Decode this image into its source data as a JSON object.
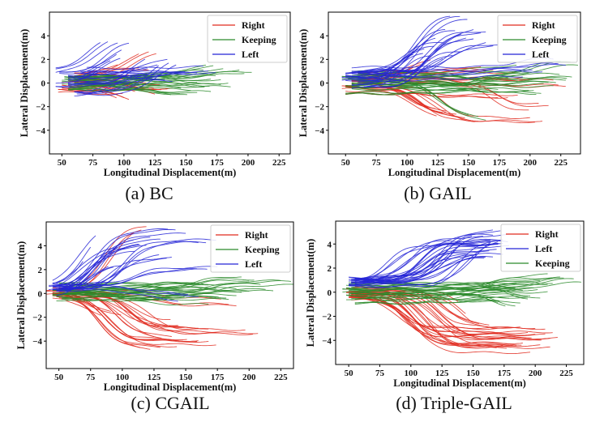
{
  "colors": {
    "Right": "#e02a1e",
    "Keeping": "#2a8a2a",
    "Left": "#2424d6"
  },
  "chart_data": [
    {
      "type": "line",
      "caption": "(a)  BC",
      "xlabel": "Longitudinal Displacement(m)",
      "ylabel": "Lateral Displacement(m)",
      "xlim": [
        40,
        234
      ],
      "ylim": [
        -6,
        6
      ],
      "xticks": [
        50,
        75,
        100,
        125,
        150,
        175,
        200,
        225
      ],
      "yticks": [
        -4,
        -2,
        0,
        2,
        4
      ],
      "legend": {
        "placement": "top-right",
        "order": [
          "Right",
          "Keeping",
          "Left"
        ]
      },
      "trajectory_format": "[x_start, x_end, y_start, y_end, x_transition]",
      "series": [
        {
          "name": "Right",
          "trajectories": [
            [
              47,
              100,
              -0.8,
              -1.0,
              80
            ],
            [
              50,
              105,
              -0.5,
              -1.7,
              95
            ],
            [
              55,
              125,
              0.2,
              -1.4,
              115
            ],
            [
              60,
              130,
              -0.3,
              -0.6,
              90
            ],
            [
              55,
              95,
              0.5,
              2.0,
              85
            ],
            [
              70,
              127,
              0.5,
              2.9,
              110
            ],
            [
              65,
              140,
              0.0,
              -0.5,
              100
            ],
            [
              60,
              120,
              0.8,
              1.2,
              90
            ],
            [
              50,
              95,
              -0.2,
              -1.7,
              85
            ],
            [
              58,
              110,
              0.3,
              0.8,
              95
            ]
          ]
        },
        {
          "name": "Keeping",
          "trajectories": [
            [
              52,
              180,
              0.3,
              1.2,
              150
            ],
            [
              55,
              203,
              0.5,
              1.0,
              170
            ],
            [
              56,
              187,
              -0.3,
              -0.3,
              120
            ],
            [
              60,
              175,
              0.2,
              0.6,
              140
            ],
            [
              55,
              160,
              -0.5,
              -0.9,
              130
            ],
            [
              60,
              185,
              -0.2,
              0.0,
              150
            ],
            [
              57,
              170,
              0.4,
              -0.2,
              130
            ],
            [
              62,
              155,
              0.0,
              -0.6,
              120
            ],
            [
              55,
              130,
              -0.4,
              0.3,
              100
            ],
            [
              60,
              145,
              0.6,
              0.8,
              110
            ],
            [
              50,
              120,
              0.0,
              -0.5,
              90
            ]
          ]
        },
        {
          "name": "Left",
          "trajectories": [
            [
              45,
              95,
              0.8,
              3.6,
              75
            ],
            [
              48,
              104,
              0.8,
              3.7,
              85
            ],
            [
              55,
              98,
              0.2,
              2.6,
              85
            ],
            [
              45,
              140,
              -0.3,
              0.2,
              90
            ],
            [
              65,
              135,
              0.9,
              2.3,
              120
            ],
            [
              62,
              143,
              -1.0,
              1.9,
              125
            ],
            [
              55,
              160,
              0.5,
              0.9,
              130
            ],
            [
              60,
              120,
              -0.8,
              1.0,
              100
            ],
            [
              70,
              175,
              0.9,
              0.8,
              130
            ],
            [
              55,
              118,
              0.0,
              2.5,
              105
            ]
          ]
        }
      ]
    },
    {
      "type": "line",
      "caption": "(b)  GAIL",
      "xlabel": "Longitudinal Displacement(m)",
      "ylabel": "Lateral Displacement(m)",
      "xlim": [
        36,
        241
      ],
      "ylim": [
        -6,
        6
      ],
      "xticks": [
        50,
        75,
        100,
        125,
        150,
        175,
        200,
        225
      ],
      "yticks": [
        -4,
        -2,
        0,
        2,
        4
      ],
      "legend": {
        "placement": "top-right",
        "order": [
          "Right",
          "Keeping",
          "Left"
        ]
      },
      "trajectory_format": "[x_start, x_end, y_start, y_end, x_transition]",
      "series": [
        {
          "name": "Right",
          "trajectories": [
            [
              47,
              155,
              -0.5,
              -3.3,
              115
            ],
            [
              50,
              210,
              -0.3,
              -3.2,
              120
            ],
            [
              55,
              215,
              0.2,
              -2.0,
              170
            ],
            [
              60,
              200,
              0.5,
              0.3,
              120
            ],
            [
              50,
              190,
              -0.8,
              -1.0,
              120
            ],
            [
              55,
              130,
              0.0,
              -2.5,
              100
            ],
            [
              60,
              170,
              0.8,
              1.2,
              130
            ],
            [
              50,
              140,
              -0.4,
              -2.8,
              110
            ],
            [
              65,
              230,
              0.0,
              -0.3,
              150
            ],
            [
              55,
              120,
              0.3,
              2.0,
              95
            ]
          ]
        },
        {
          "name": "Keeping",
          "trajectories": [
            [
              47,
              240,
              0.3,
              1.5,
              200
            ],
            [
              50,
              235,
              -0.3,
              0.5,
              150
            ],
            [
              55,
              220,
              0.0,
              -0.3,
              150
            ],
            [
              55,
              200,
              0.6,
              0.9,
              150
            ],
            [
              50,
              175,
              -0.8,
              -0.5,
              120
            ],
            [
              60,
              165,
              0.0,
              -3.2,
              130
            ],
            [
              55,
              210,
              -0.5,
              -0.8,
              160
            ],
            [
              60,
              190,
              0.8,
              0.2,
              140
            ],
            [
              52,
              150,
              0.3,
              -0.2,
              110
            ],
            [
              55,
              230,
              0.0,
              0.3,
              180
            ]
          ]
        },
        {
          "name": "Left",
          "trajectories": [
            [
              47,
              150,
              0.2,
              5.4,
              110
            ],
            [
              50,
              165,
              0.5,
              4.4,
              115
            ],
            [
              55,
              140,
              0.8,
              4.5,
              105
            ],
            [
              60,
              155,
              0.0,
              3.8,
              115
            ],
            [
              50,
              130,
              0.9,
              3.5,
              95
            ],
            [
              55,
              120,
              -0.5,
              2.5,
              95
            ],
            [
              60,
              175,
              0.9,
              3.3,
              130
            ],
            [
              50,
              210,
              0.5,
              1.0,
              150
            ],
            [
              55,
              230,
              1.0,
              1.5,
              180
            ],
            [
              65,
              145,
              -0.3,
              2.8,
              110
            ]
          ]
        }
      ]
    },
    {
      "type": "line",
      "caption": "(c)  CGAIL",
      "xlabel": "Longitudinal Displacement(m)",
      "ylabel": "Lateral Displacement(m)",
      "xlim": [
        40,
        235
      ],
      "ylim": [
        -6.3,
        6
      ],
      "xticks": [
        50,
        75,
        100,
        125,
        150,
        175,
        200,
        225
      ],
      "yticks": [
        -4,
        -2,
        0,
        2,
        4
      ],
      "legend": {
        "placement": "top-right",
        "order": [
          "Right",
          "Keeping",
          "Left"
        ]
      },
      "trajectory_format": "[x_start, x_end, y_start, y_end, x_transition]",
      "series": [
        {
          "name": "Right",
          "trajectories": [
            [
              40,
              175,
              0.0,
              -4.3,
              90
            ],
            [
              45,
              208,
              -0.2,
              -3.3,
              110
            ],
            [
              45,
              160,
              0.0,
              -4.0,
              85
            ],
            [
              50,
              150,
              -0.3,
              -2.8,
              100
            ],
            [
              48,
              130,
              0.0,
              -4.5,
              80
            ],
            [
              50,
              175,
              0.2,
              -3.2,
              105
            ],
            [
              45,
              120,
              0.2,
              5.8,
              85
            ],
            [
              55,
              100,
              0.0,
              -2.0,
              75
            ],
            [
              50,
              190,
              0.0,
              -1.0,
              120
            ],
            [
              45,
              140,
              0.1,
              -3.6,
              95
            ]
          ]
        },
        {
          "name": "Keeping",
          "trajectories": [
            [
              45,
              240,
              0.0,
              0.7,
              180
            ],
            [
              50,
              205,
              0.3,
              1.2,
              150
            ],
            [
              48,
              185,
              -0.3,
              -0.5,
              120
            ],
            [
              55,
              220,
              0.5,
              0.2,
              150
            ],
            [
              45,
              150,
              0.0,
              -0.3,
              100
            ],
            [
              50,
              175,
              0.6,
              0.5,
              130
            ],
            [
              52,
              200,
              -0.5,
              0.2,
              140
            ],
            [
              48,
              165,
              0.2,
              0.8,
              120
            ],
            [
              55,
              130,
              0.0,
              -0.6,
              100
            ],
            [
              50,
              190,
              0.1,
              -0.1,
              140
            ]
          ]
        },
        {
          "name": "Left",
          "trajectories": [
            [
              42,
              150,
              0.3,
              5.0,
              85
            ],
            [
              45,
              80,
              0.5,
              5.8,
              65
            ],
            [
              48,
              130,
              0.0,
              4.5,
              80
            ],
            [
              45,
              120,
              0.2,
              4.0,
              75
            ],
            [
              50,
              175,
              0.4,
              4.5,
              100
            ],
            [
              48,
              110,
              0.0,
              3.5,
              70
            ],
            [
              45,
              140,
              0.3,
              3.0,
              90
            ],
            [
              50,
              160,
              0.5,
              -0.2,
              120
            ],
            [
              55,
              100,
              0.0,
              2.5,
              75
            ],
            [
              45,
              175,
              0.8,
              2.2,
              110
            ]
          ]
        }
      ]
    },
    {
      "type": "line",
      "caption": "(d)  Triple-GAIL",
      "xlabel": "Longitudinal Displacement(m)",
      "ylabel": "Lateral Displacement(m)",
      "xlim": [
        39.5,
        239
      ],
      "ylim": [
        -6,
        5.9
      ],
      "xticks": [
        50,
        75,
        100,
        125,
        150,
        175,
        200,
        225
      ],
      "yticks": [
        -4,
        -2,
        0,
        2,
        4
      ],
      "legend": {
        "placement": "top-right",
        "order": [
          "Right",
          "Left",
          "Keeping"
        ]
      },
      "trajectory_format": "[x_start, x_end, y_start, y_end, x_transition]",
      "series": [
        {
          "name": "Right",
          "trajectories": [
            [
              50,
              215,
              -0.5,
              -3.3,
              95
            ],
            [
              50,
              218,
              0.0,
              -3.8,
              100
            ],
            [
              52,
              213,
              -0.3,
              -4.6,
              105
            ],
            [
              48,
              200,
              0.0,
              -3.5,
              115
            ],
            [
              52,
              190,
              -0.2,
              -4.2,
              95
            ],
            [
              55,
              170,
              0.2,
              -3.0,
              130
            ],
            [
              50,
              180,
              -0.4,
              -3.7,
              90
            ],
            [
              55,
              205,
              0.0,
              -3.9,
              125
            ],
            [
              52,
              150,
              -0.2,
              -3.2,
              140
            ],
            [
              55,
              185,
              0.0,
              -4.4,
              110
            ]
          ]
        },
        {
          "name": "Keeping",
          "trajectories": [
            [
              45,
              238,
              0.0,
              0.8,
              200
            ],
            [
              50,
              220,
              0.2,
              1.2,
              160
            ],
            [
              48,
              210,
              -0.3,
              0.0,
              150
            ],
            [
              52,
              195,
              0.4,
              -0.7,
              180
            ],
            [
              50,
              185,
              0.0,
              -1.2,
              165
            ],
            [
              55,
              200,
              -0.6,
              0.3,
              150
            ],
            [
              50,
              215,
              0.6,
              0.8,
              180
            ],
            [
              52,
              205,
              -0.2,
              -0.4,
              140
            ],
            [
              48,
              190,
              0.3,
              0.2,
              150
            ],
            [
              55,
              180,
              -0.8,
              -0.5,
              130
            ]
          ]
        },
        {
          "name": "Left",
          "trajectories": [
            [
              50,
              180,
              1.0,
              4.8,
              130
            ],
            [
              52,
              175,
              0.8,
              4.0,
              80
            ],
            [
              55,
              170,
              1.1,
              3.5,
              115
            ],
            [
              50,
              178,
              0.6,
              4.2,
              105
            ],
            [
              52,
              175,
              0.9,
              3.2,
              125
            ],
            [
              55,
              160,
              0.9,
              2.8,
              120
            ],
            [
              50,
              175,
              0.5,
              4.5,
              140
            ],
            [
              55,
              180,
              1.0,
              3.8,
              110
            ],
            [
              52,
              170,
              0.8,
              4.0,
              95
            ],
            [
              55,
              150,
              0.9,
              5.0,
              125
            ]
          ]
        }
      ]
    }
  ]
}
